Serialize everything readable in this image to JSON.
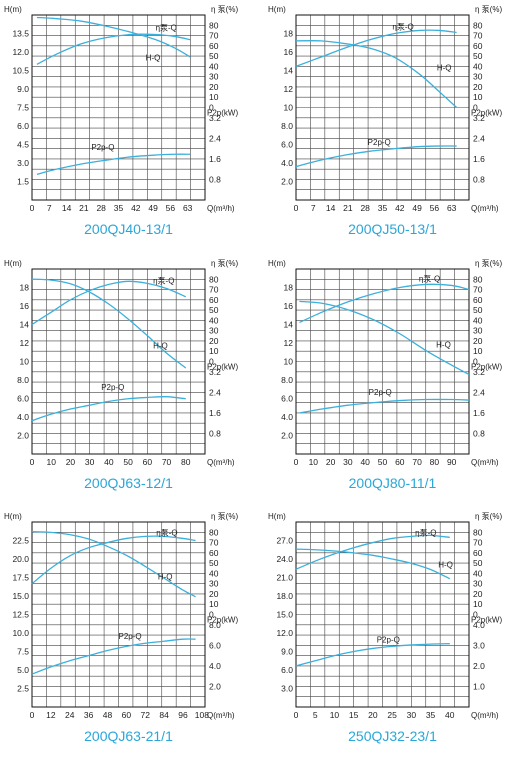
{
  "chart_data": [
    {
      "type": "line",
      "title": "200QJ40-13/1",
      "xlabel": "Q(m³/h)",
      "ylabel_left": "H(m)",
      "ylabel_right_top": "η 泵(%)",
      "ylabel_right_bottom": "P2p(kW)",
      "xlim": [
        0,
        70
      ],
      "xticks": [
        "0",
        "7",
        "14",
        "21",
        "28",
        "35",
        "42",
        "49",
        "56",
        "63"
      ],
      "hlim": [
        0,
        15
      ],
      "hticks": [
        "1.5",
        "3.0",
        "4.5",
        "6.0",
        "7.5",
        "9.0",
        "10.5",
        "12.0",
        "13.5"
      ],
      "etalim": [
        0,
        80
      ],
      "etaticks": [
        "0",
        "10",
        "20",
        "30",
        "40",
        "50",
        "60",
        "70",
        "80"
      ],
      "plim": [
        0,
        4.8
      ],
      "pticks": [
        "0.8",
        "1.6",
        "2.4",
        "3.2"
      ],
      "curve_color": "#3bb0dc",
      "series": [
        {
          "name": "H-Q",
          "axis": "h",
          "x": [
            2,
            10,
            20,
            30,
            40,
            50,
            58,
            64
          ],
          "y": [
            14.8,
            14.7,
            14.5,
            14.1,
            13.6,
            13.0,
            12.3,
            11.6
          ]
        },
        {
          "name": "η泵-Q",
          "axis": "eta",
          "x": [
            2,
            10,
            20,
            30,
            40,
            50,
            58,
            64
          ],
          "y": [
            42,
            52,
            62,
            68,
            71,
            71,
            69,
            66
          ]
        },
        {
          "name": "P2p-Q",
          "axis": "p",
          "x": [
            2,
            10,
            20,
            30,
            40,
            50,
            58,
            64
          ],
          "y": [
            1.0,
            1.2,
            1.4,
            1.55,
            1.68,
            1.75,
            1.78,
            1.78
          ]
        }
      ],
      "curve_labels": [
        {
          "text": "η泵-Q",
          "x": 50,
          "axis": "eta",
          "y": 75
        },
        {
          "text": "H-Q",
          "x": 46,
          "axis": "h",
          "y": 11.3
        },
        {
          "text": "P2p-Q",
          "x": 24,
          "axis": "p",
          "y": 1.95
        }
      ]
    },
    {
      "type": "line",
      "title": "200QJ50-13/1",
      "xlabel": "Q(m³/h)",
      "ylabel_left": "H(m)",
      "ylabel_right_top": "η 泵(%)",
      "ylabel_right_bottom": "P2p(kW)",
      "xlim": [
        0,
        70
      ],
      "xticks": [
        "0",
        "7",
        "14",
        "21",
        "28",
        "35",
        "42",
        "49",
        "56",
        "63"
      ],
      "hlim": [
        0,
        20
      ],
      "hticks": [
        "2.0",
        "4.0",
        "6.0",
        "8.0",
        "10",
        "12",
        "14",
        "16",
        "18"
      ],
      "etalim": [
        0,
        80
      ],
      "etaticks": [
        "0",
        "10",
        "20",
        "30",
        "40",
        "50",
        "60",
        "70",
        "80"
      ],
      "plim": [
        0,
        4.8
      ],
      "pticks": [
        "0.8",
        "1.6",
        "2.4",
        "3.2"
      ],
      "curve_color": "#3bb0dc",
      "series": [
        {
          "name": "H-Q",
          "axis": "h",
          "x": [
            0,
            10,
            20,
            30,
            40,
            50,
            58,
            65
          ],
          "y": [
            17.2,
            17.2,
            16.9,
            16.4,
            15.4,
            13.6,
            11.7,
            10.0
          ]
        },
        {
          "name": "η泵-Q",
          "axis": "eta",
          "x": [
            0,
            10,
            20,
            30,
            40,
            50,
            58,
            65
          ],
          "y": [
            40,
            49,
            58,
            66,
            72,
            75,
            75,
            73
          ]
        },
        {
          "name": "P2p-Q",
          "axis": "p",
          "x": [
            0,
            10,
            20,
            30,
            40,
            50,
            58,
            65
          ],
          "y": [
            1.3,
            1.55,
            1.75,
            1.9,
            2.0,
            2.08,
            2.1,
            2.1
          ]
        }
      ],
      "curve_labels": [
        {
          "text": "η泵-Q",
          "x": 39,
          "axis": "eta",
          "y": 76
        },
        {
          "text": "H-Q",
          "x": 57,
          "axis": "h",
          "y": 14.0
        },
        {
          "text": "P2p-Q",
          "x": 29,
          "axis": "p",
          "y": 2.15
        }
      ]
    },
    {
      "type": "line",
      "title": "200QJ63-12/1",
      "xlabel": "Q(m³/h)",
      "ylabel_left": "H(m)",
      "ylabel_right_top": "η 泵(%)",
      "ylabel_right_bottom": "P2p(kW)",
      "xlim": [
        0,
        90
      ],
      "xticks": [
        "0",
        "10",
        "20",
        "30",
        "40",
        "50",
        "60",
        "70",
        "80"
      ],
      "hlim": [
        0,
        20
      ],
      "hticks": [
        "2.0",
        "4.0",
        "6.0",
        "8.0",
        "10",
        "12",
        "14",
        "16",
        "18"
      ],
      "etalim": [
        0,
        80
      ],
      "etaticks": [
        "0",
        "10",
        "20",
        "30",
        "40",
        "50",
        "60",
        "70",
        "80"
      ],
      "plim": [
        0,
        4.8
      ],
      "pticks": [
        "0.8",
        "1.6",
        "2.4",
        "3.2"
      ],
      "curve_color": "#3bb0dc",
      "series": [
        {
          "name": "H-Q",
          "axis": "h",
          "x": [
            0,
            10,
            20,
            30,
            40,
            50,
            60,
            70,
            80
          ],
          "y": [
            18.9,
            18.8,
            18.4,
            17.5,
            16.2,
            14.6,
            12.8,
            10.9,
            9.3
          ]
        },
        {
          "name": "η泵-Q",
          "axis": "eta",
          "x": [
            0,
            10,
            20,
            30,
            40,
            50,
            60,
            70,
            80
          ],
          "y": [
            36,
            48,
            60,
            69,
            75,
            78,
            76,
            71,
            63
          ]
        },
        {
          "name": "P2p-Q",
          "axis": "p",
          "x": [
            0,
            10,
            20,
            30,
            40,
            50,
            60,
            70,
            80
          ],
          "y": [
            1.3,
            1.55,
            1.75,
            1.9,
            2.05,
            2.15,
            2.2,
            2.23,
            2.15
          ]
        }
      ],
      "curve_labels": [
        {
          "text": "η泵-Q",
          "x": 63,
          "axis": "eta",
          "y": 76
        },
        {
          "text": "H-Q",
          "x": 63,
          "axis": "h",
          "y": 11.4
        },
        {
          "text": "P2p-Q",
          "x": 36,
          "axis": "p",
          "y": 2.5
        }
      ]
    },
    {
      "type": "line",
      "title": "200QJ80-11/1",
      "xlabel": "Q(m³/h)",
      "ylabel_left": "H(m)",
      "ylabel_right_top": "η 泵(%)",
      "ylabel_right_bottom": "P2p(kW)",
      "xlim": [
        0,
        100
      ],
      "xticks": [
        "0",
        "10",
        "20",
        "30",
        "40",
        "50",
        "60",
        "70",
        "80",
        "90"
      ],
      "hlim": [
        0,
        20
      ],
      "hticks": [
        "2.0",
        "4.0",
        "6.0",
        "8.0",
        "10",
        "12",
        "14",
        "16",
        "18"
      ],
      "etalim": [
        0,
        80
      ],
      "etaticks": [
        "0",
        "10",
        "20",
        "30",
        "40",
        "50",
        "60",
        "70",
        "80"
      ],
      "plim": [
        0,
        4.8
      ],
      "pticks": [
        "0.8",
        "1.6",
        "2.4",
        "3.2"
      ],
      "curve_color": "#3bb0dc",
      "series": [
        {
          "name": "H-Q",
          "axis": "h",
          "x": [
            2,
            15,
            30,
            45,
            60,
            75,
            90,
            100
          ],
          "y": [
            16.5,
            16.3,
            15.6,
            14.5,
            13.0,
            11.2,
            9.6,
            8.6
          ]
        },
        {
          "name": "η泵-Q",
          "axis": "eta",
          "x": [
            2,
            15,
            30,
            45,
            60,
            75,
            90,
            100
          ],
          "y": [
            38,
            48,
            58,
            66,
            72,
            75,
            74,
            70
          ]
        },
        {
          "name": "P2p-Q",
          "axis": "p",
          "x": [
            2,
            15,
            30,
            45,
            60,
            75,
            90,
            100
          ],
          "y": [
            1.6,
            1.75,
            1.9,
            2.0,
            2.08,
            2.12,
            2.12,
            2.1
          ]
        }
      ],
      "curve_labels": [
        {
          "text": "η泵-Q",
          "x": 71,
          "axis": "eta",
          "y": 78
        },
        {
          "text": "H-Q",
          "x": 81,
          "axis": "h",
          "y": 11.5
        },
        {
          "text": "P2p-Q",
          "x": 42,
          "axis": "p",
          "y": 2.3
        }
      ]
    },
    {
      "type": "line",
      "title": "200QJ63-21/1",
      "xlabel": "Q(m³/h)",
      "ylabel_left": "H(m)",
      "ylabel_right_top": "η 泵(%)",
      "ylabel_right_bottom": "P2p(kW)",
      "xlim": [
        0,
        110
      ],
      "xticks": [
        "0",
        "12",
        "24",
        "36",
        "48",
        "60",
        "72",
        "84",
        "96",
        "108"
      ],
      "hlim": [
        0,
        25
      ],
      "hticks": [
        "2.5",
        "5.0",
        "7.5",
        "10.0",
        "12.5",
        "15.0",
        "17.5",
        "20.0",
        "22.5"
      ],
      "etalim": [
        0,
        80
      ],
      "etaticks": [
        "0",
        "10",
        "20",
        "30",
        "40",
        "50",
        "60",
        "70",
        "80"
      ],
      "plim": [
        0,
        9.6
      ],
      "pticks": [
        "2.0",
        "4.0",
        "6.0",
        "8.0"
      ],
      "curve_color": "#3bb0dc",
      "series": [
        {
          "name": "H-Q",
          "axis": "h",
          "x": [
            0,
            12,
            24,
            36,
            48,
            60,
            72,
            84,
            96,
            104
          ],
          "y": [
            23.7,
            23.6,
            23.3,
            22.7,
            21.7,
            20.5,
            19.0,
            17.4,
            15.8,
            14.9
          ]
        },
        {
          "name": "η泵-Q",
          "axis": "eta",
          "x": [
            0,
            12,
            24,
            36,
            48,
            60,
            72,
            84,
            96,
            104
          ],
          "y": [
            30,
            45,
            57,
            65,
            70,
            74,
            76,
            76,
            74,
            72
          ]
        },
        {
          "name": "P2p-Q",
          "axis": "p",
          "x": [
            0,
            12,
            24,
            36,
            48,
            60,
            72,
            84,
            96,
            104
          ],
          "y": [
            3.2,
            3.9,
            4.5,
            5.0,
            5.5,
            5.9,
            6.2,
            6.4,
            6.6,
            6.6
          ]
        }
      ],
      "curve_labels": [
        {
          "text": "η泵-Q",
          "x": 79,
          "axis": "eta",
          "y": 77
        },
        {
          "text": "H-Q",
          "x": 80,
          "axis": "h",
          "y": 17.2
        },
        {
          "text": "P2p-Q",
          "x": 55,
          "axis": "p",
          "y": 6.6
        }
      ]
    },
    {
      "type": "line",
      "title": "250QJ32-23/1",
      "xlabel": "Q(m³/h)",
      "ylabel_left": "H(m)",
      "ylabel_right_top": "η 泵(%)",
      "ylabel_right_bottom": "P2p(kW)",
      "xlim": [
        0,
        45
      ],
      "xticks": [
        "0",
        "5",
        "10",
        "15",
        "20",
        "25",
        "30",
        "35",
        "40"
      ],
      "hlim": [
        0,
        30
      ],
      "hticks": [
        "3.0",
        "6.0",
        "9.0",
        "12.0",
        "15.0",
        "18.0",
        "21.0",
        "24.0",
        "27.0"
      ],
      "etalim": [
        0,
        80
      ],
      "etaticks": [
        "0",
        "10",
        "20",
        "30",
        "40",
        "50",
        "60",
        "70",
        "80"
      ],
      "plim": [
        0,
        4.8
      ],
      "pticks": [
        "1.0",
        "2.0",
        "3.0",
        "4.0"
      ],
      "curve_color": "#3bb0dc",
      "series": [
        {
          "name": "H-Q",
          "axis": "h",
          "x": [
            0,
            5,
            10,
            15,
            20,
            25,
            30,
            35,
            40
          ],
          "y": [
            25.6,
            25.5,
            25.3,
            25.0,
            24.6,
            24.0,
            23.3,
            22.3,
            20.8
          ]
        },
        {
          "name": "η泵-Q",
          "axis": "eta",
          "x": [
            0,
            5,
            10,
            15,
            20,
            25,
            30,
            35,
            40
          ],
          "y": [
            44,
            52,
            59,
            65,
            70,
            74,
            76,
            77,
            75
          ]
        },
        {
          "name": "P2p-Q",
          "axis": "p",
          "x": [
            0,
            5,
            10,
            15,
            20,
            25,
            30,
            35,
            40
          ],
          "y": [
            2.0,
            2.25,
            2.5,
            2.7,
            2.85,
            2.95,
            3.02,
            3.06,
            3.08
          ]
        }
      ],
      "curve_labels": [
        {
          "text": "η泵-Q",
          "x": 31,
          "axis": "eta",
          "y": 77
        },
        {
          "text": "H-Q",
          "x": 37,
          "axis": "h",
          "y": 22.6
        },
        {
          "text": "P2p-Q",
          "x": 21,
          "axis": "p",
          "y": 3.15
        }
      ]
    }
  ]
}
